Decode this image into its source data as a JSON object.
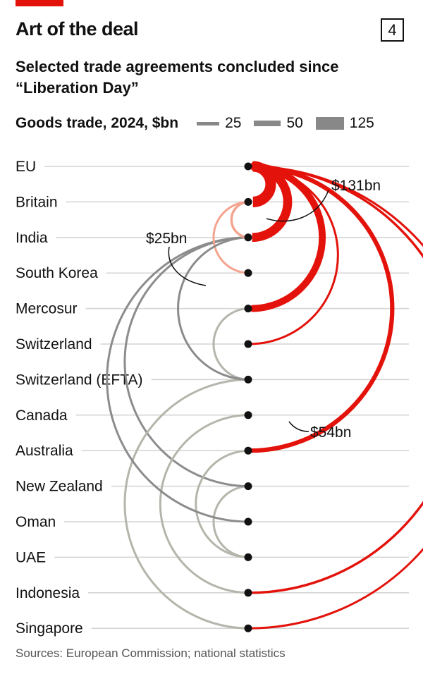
{
  "header": {
    "title": "Art of the deal",
    "chart_number": "4",
    "subtitle": "Selected trade agreements concluded since “Liberation Day”",
    "source": "Sources: European Commission; national statistics"
  },
  "legend": {
    "title": "Goods trade, 2024, $bn",
    "items": [
      {
        "label": "25",
        "value": 25
      },
      {
        "label": "50",
        "value": 50
      },
      {
        "label": "125",
        "value": 125
      }
    ]
  },
  "colors": {
    "eu": "#e3120b",
    "britain": "#f4a48e",
    "switzerland": "#8c8c8c",
    "efta": "#b4b5ab",
    "node": "#111111",
    "gridline": "#d3d3d3"
  },
  "chart_data": {
    "type": "arc",
    "title": "Art of the deal",
    "nodes": [
      "EU",
      "Britain",
      "India",
      "South Korea",
      "Mercosur",
      "Switzerland",
      "Switzerland (EFTA)",
      "Canada",
      "Australia",
      "New Zealand",
      "Oman",
      "UAE",
      "Indonesia",
      "Singapore"
    ],
    "links": [
      {
        "source": "EU",
        "target": "Britain",
        "value": 131,
        "group": "eu",
        "label": "$131bn"
      },
      {
        "source": "EU",
        "target": "India",
        "value": 110,
        "group": "eu"
      },
      {
        "source": "EU",
        "target": "Mercosur",
        "value": 85,
        "group": "eu"
      },
      {
        "source": "EU",
        "target": "Switzerland",
        "value": 25,
        "group": "eu"
      },
      {
        "source": "EU",
        "target": "Australia",
        "value": 54,
        "group": "eu",
        "label": "$54bn"
      },
      {
        "source": "EU",
        "target": "Indonesia",
        "value": 30,
        "group": "eu"
      },
      {
        "source": "EU",
        "target": "Singapore",
        "value": 20,
        "group": "eu"
      },
      {
        "source": "Britain",
        "target": "India",
        "value": 30,
        "group": "britain"
      },
      {
        "source": "Britain",
        "target": "South Korea",
        "value": 25,
        "group": "britain"
      },
      {
        "source": "India",
        "target": "Switzerland (EFTA)",
        "value": 25,
        "group": "switzerland",
        "label": "$25bn"
      },
      {
        "source": "India",
        "target": "New Zealand",
        "value": 10,
        "group": "switzerland"
      },
      {
        "source": "India",
        "target": "Oman",
        "value": 12,
        "group": "switzerland"
      },
      {
        "source": "Mercosur",
        "target": "Switzerland (EFTA)",
        "value": 15,
        "group": "efta"
      },
      {
        "source": "Switzerland (EFTA)",
        "target": "Singapore",
        "value": 10,
        "group": "efta"
      },
      {
        "source": "Canada",
        "target": "Indonesia",
        "value": 10,
        "group": "efta"
      },
      {
        "source": "Australia",
        "target": "UAE",
        "value": 10,
        "group": "efta"
      },
      {
        "source": "New Zealand",
        "target": "UAE",
        "value": 8,
        "group": "efta"
      }
    ]
  }
}
